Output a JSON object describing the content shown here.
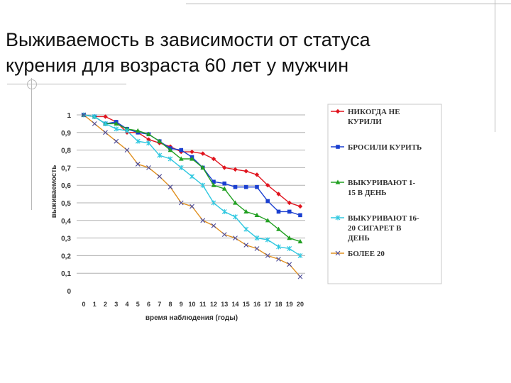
{
  "title_line1": "Выживаемость в зависимости от статуса",
  "title_line2": "курения для возраста 60 лет у мужчин",
  "chart_data": {
    "type": "line",
    "title": "",
    "xlabel": "время наблюдения (годы)",
    "ylabel": "выживаемость",
    "xlim": [
      0,
      20
    ],
    "ylim": [
      0,
      1
    ],
    "x_ticks": [
      "0",
      "1",
      "2",
      "3",
      "4",
      "5",
      "6",
      "7",
      "8",
      "9",
      "10",
      "11",
      "12",
      "13",
      "14",
      "15",
      "16",
      "17",
      "18",
      "19",
      "20"
    ],
    "y_ticks": [
      "0",
      "0,1",
      "0,2",
      "0,3",
      "0,4",
      "0,5",
      "0,6",
      "0,7",
      "0,8",
      "0,9",
      "1"
    ],
    "grid": "horizontal",
    "legend_position": "right",
    "x": [
      0,
      1,
      2,
      3,
      4,
      5,
      6,
      7,
      8,
      9,
      10,
      11,
      12,
      13,
      14,
      15,
      16,
      17,
      18,
      19,
      20
    ],
    "series": [
      {
        "name": [
          "НИКОГДА НЕ",
          "КУРИЛИ"
        ],
        "color": "#e0141e",
        "marker": "diamond",
        "values": [
          1.0,
          0.99,
          0.99,
          0.96,
          0.9,
          0.9,
          0.86,
          0.84,
          0.82,
          0.79,
          0.79,
          0.78,
          0.75,
          0.7,
          0.69,
          0.68,
          0.66,
          0.6,
          0.55,
          0.5,
          0.48
        ]
      },
      {
        "name": [
          "БРОСИЛИ КУРИТЬ"
        ],
        "color": "#1a3fd0",
        "marker": "square",
        "values": [
          1.0,
          0.99,
          0.95,
          0.96,
          0.92,
          0.9,
          0.89,
          0.85,
          0.81,
          0.8,
          0.76,
          0.7,
          0.62,
          0.61,
          0.59,
          0.59,
          0.59,
          0.51,
          0.45,
          0.45,
          0.43
        ]
      },
      {
        "name": [
          "ВЫКУРИВАЮТ 1-",
          "15 В ДЕНЬ"
        ],
        "color": "#22a022",
        "marker": "triangle",
        "values": [
          1.0,
          0.99,
          0.95,
          0.95,
          0.92,
          0.91,
          0.89,
          0.85,
          0.8,
          0.75,
          0.75,
          0.7,
          0.6,
          0.58,
          0.5,
          0.45,
          0.43,
          0.4,
          0.35,
          0.3,
          0.28
        ]
      },
      {
        "name": [
          "ВЫКУРИВАЮТ 16-",
          "20 СИГАРЕТ В",
          "ДЕНЬ"
        ],
        "color": "#30c8e0",
        "marker": "asterisk",
        "values": [
          1.0,
          0.99,
          0.95,
          0.92,
          0.91,
          0.85,
          0.84,
          0.77,
          0.75,
          0.7,
          0.65,
          0.6,
          0.5,
          0.45,
          0.42,
          0.35,
          0.3,
          0.29,
          0.25,
          0.24,
          0.2
        ]
      },
      {
        "name": [
          "БОЛЕЕ 20"
        ],
        "color": "#e09020",
        "marker": "x",
        "values": [
          1.0,
          0.95,
          0.9,
          0.85,
          0.8,
          0.72,
          0.7,
          0.65,
          0.59,
          0.5,
          0.48,
          0.4,
          0.37,
          0.32,
          0.3,
          0.26,
          0.24,
          0.2,
          0.18,
          0.15,
          0.08
        ]
      }
    ]
  }
}
